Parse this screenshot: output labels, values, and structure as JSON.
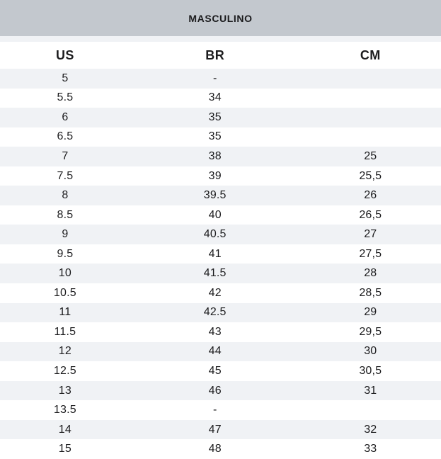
{
  "table": {
    "title": "MASCULINO",
    "columns": [
      "US",
      "BR",
      "CM"
    ],
    "rows": [
      [
        "5",
        "-",
        ""
      ],
      [
        "5.5",
        "34",
        ""
      ],
      [
        "6",
        "35",
        ""
      ],
      [
        "6.5",
        "35",
        ""
      ],
      [
        "7",
        "38",
        "25"
      ],
      [
        "7.5",
        "39",
        "25,5"
      ],
      [
        "8",
        "39.5",
        "26"
      ],
      [
        "8.5",
        "40",
        "26,5"
      ],
      [
        "9",
        "40.5",
        "27"
      ],
      [
        "9.5",
        "41",
        "27,5"
      ],
      [
        "10",
        "41.5",
        "28"
      ],
      [
        "10.5",
        "42",
        "28,5"
      ],
      [
        "11",
        "42.5",
        "29"
      ],
      [
        "11.5",
        "43",
        "29,5"
      ],
      [
        "12",
        "44",
        "30"
      ],
      [
        "12.5",
        "45",
        "30,5"
      ],
      [
        "13",
        "46",
        "31"
      ],
      [
        "13.5",
        "-",
        ""
      ],
      [
        "14",
        "47",
        "32"
      ],
      [
        "15",
        "48",
        "33"
      ]
    ]
  },
  "colors": {
    "title_bg": "#c3c8ce",
    "stripe_bg": "#f0f2f5",
    "text": "#1c1c1e"
  }
}
